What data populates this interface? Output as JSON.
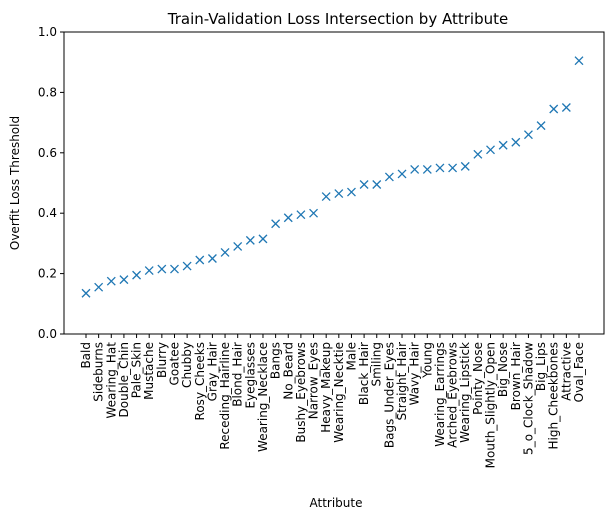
{
  "chart_data": {
    "type": "scatter",
    "title": "Train-Validation Loss Intersection by Attribute",
    "xlabel": "Attribute",
    "ylabel": "Overfit Loss Threshold",
    "ylim": [
      0.0,
      1.0
    ],
    "yticks": [
      "0.0",
      "0.2",
      "0.4",
      "0.6",
      "0.8",
      "1.0"
    ],
    "grid": false,
    "marker": "x",
    "marker_color": "#1f77b4",
    "categories": [
      "Bald",
      "Sideburns",
      "Wearing_Hat",
      "Double_Chin",
      "Pale_Skin",
      "Mustache",
      "Blurry",
      "Goatee",
      "Chubby",
      "Rosy_Cheeks",
      "Gray_Hair",
      "Receding_Hairline",
      "Blond_Hair",
      "Eyeglasses",
      "Wearing_Necklace",
      "Bangs",
      "No_Beard",
      "Bushy_Eyebrows",
      "Narrow_Eyes",
      "Heavy_Makeup",
      "Wearing_Necktie",
      "Male",
      "Black_Hair",
      "Smiling",
      "Bags_Under_Eyes",
      "Straight_Hair",
      "Wavy_Hair",
      "Young",
      "Wearing_Earrings",
      "Arched_Eyebrows",
      "Wearing_Lipstick",
      "Pointy_Nose",
      "Mouth_Slightly_Open",
      "Big_Nose",
      "Brown_Hair",
      "5_o_Clock_Shadow",
      "Big_Lips",
      "High_Cheekbones",
      "Attractive",
      "Oval_Face"
    ],
    "values": [
      0.135,
      0.155,
      0.175,
      0.18,
      0.195,
      0.21,
      0.215,
      0.215,
      0.225,
      0.245,
      0.25,
      0.27,
      0.29,
      0.31,
      0.315,
      0.365,
      0.385,
      0.395,
      0.4,
      0.455,
      0.465,
      0.47,
      0.495,
      0.495,
      0.52,
      0.53,
      0.545,
      0.545,
      0.55,
      0.55,
      0.555,
      0.595,
      0.61,
      0.625,
      0.635,
      0.66,
      0.69,
      0.745,
      0.75,
      0.905
    ]
  }
}
